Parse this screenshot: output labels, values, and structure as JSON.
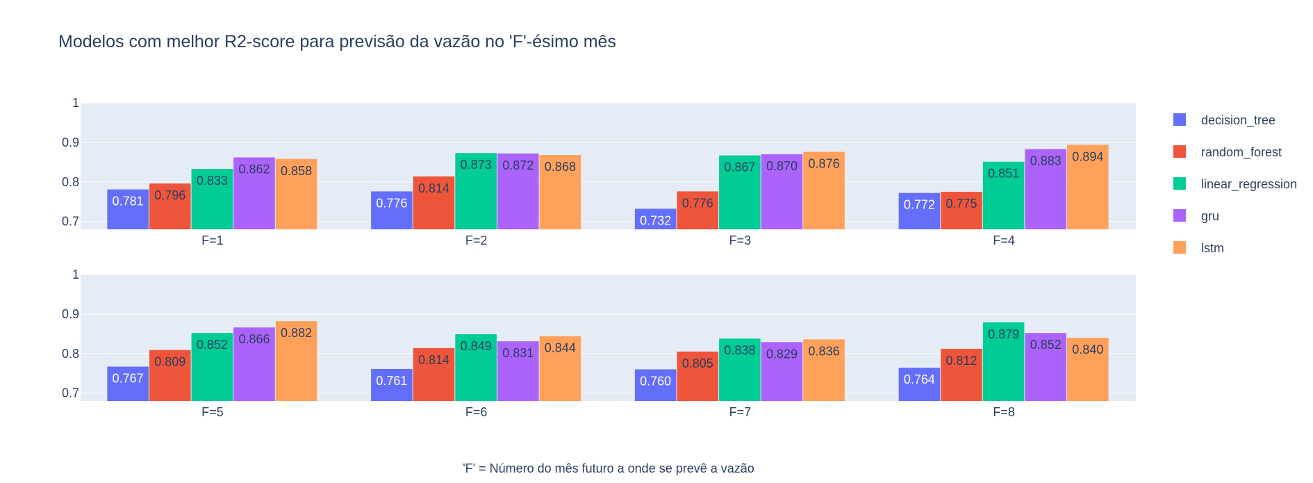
{
  "chart_data": {
    "type": "bar",
    "title": "Modelos com melhor R2-score para previsão da vazão no 'F'-ésimo mês",
    "xlabel": "'F' = Número do mês futuro a onde se prevê a vazão",
    "ylabel": "",
    "ylim": [
      0.68,
      1.0
    ],
    "yticks": [
      "0.7",
      "0.8",
      "0.9",
      "1"
    ],
    "legend_position": "right",
    "grid": true,
    "categories": [
      "F=1",
      "F=2",
      "F=3",
      "F=4",
      "F=5",
      "F=6",
      "F=7",
      "F=8"
    ],
    "panels": [
      {
        "categories": [
          "F=1",
          "F=2",
          "F=3",
          "F=4"
        ]
      },
      {
        "categories": [
          "F=5",
          "F=6",
          "F=7",
          "F=8"
        ]
      }
    ],
    "series": [
      {
        "name": "decision_tree",
        "color": "#636efa",
        "values": [
          0.781,
          0.776,
          0.732,
          0.772,
          0.767,
          0.761,
          0.76,
          0.764
        ],
        "labels": [
          "0.781",
          "0.776",
          "0.732",
          "0.772",
          "0.767",
          "0.761",
          "0.760",
          "0.764"
        ]
      },
      {
        "name": "random_forest",
        "color": "#ef553b",
        "values": [
          0.796,
          0.814,
          0.776,
          0.775,
          0.809,
          0.814,
          0.805,
          0.812
        ],
        "labels": [
          "0.796",
          "0.814",
          "0.776",
          "0.775",
          "0.809",
          "0.814",
          "0.805",
          "0.812"
        ]
      },
      {
        "name": "linear_regression",
        "color": "#00cc96",
        "values": [
          0.833,
          0.873,
          0.867,
          0.851,
          0.852,
          0.849,
          0.838,
          0.879
        ],
        "labels": [
          "0.833",
          "0.873",
          "0.867",
          "0.851",
          "0.852",
          "0.849",
          "0.838",
          "0.879"
        ]
      },
      {
        "name": "gru",
        "color": "#ab63fa",
        "values": [
          0.862,
          0.872,
          0.87,
          0.883,
          0.866,
          0.831,
          0.829,
          0.852
        ],
        "labels": [
          "0.862",
          "0.872",
          "0.870",
          "0.883",
          "0.866",
          "0.831",
          "0.829",
          "0.852"
        ]
      },
      {
        "name": "lstm",
        "color": "#ffa15a",
        "values": [
          0.858,
          0.868,
          0.876,
          0.894,
          0.882,
          0.844,
          0.836,
          0.84
        ],
        "labels": [
          "0.858",
          "0.868",
          "0.876",
          "0.894",
          "0.882",
          "0.844",
          "0.836",
          "0.840"
        ]
      }
    ]
  },
  "colors": {
    "plot_bg": "#e5ecf6",
    "grid": "#ffffff",
    "text": "#2a3f5f"
  }
}
